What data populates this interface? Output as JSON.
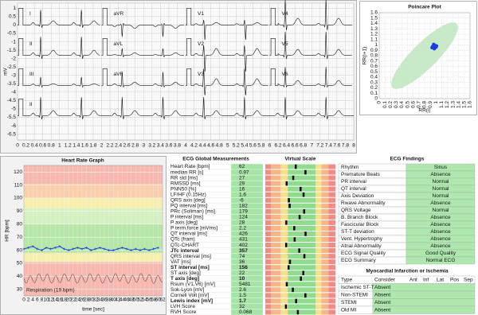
{
  "chart_data": [
    {
      "type": "line",
      "ylabel": "mV",
      "leads": [
        "I",
        "aVR",
        "V1",
        "V4",
        "II",
        "aVL",
        "V2",
        "V5",
        "III",
        "aVF",
        "V3",
        "V6",
        "II"
      ],
      "color": "#111111",
      "grid": true,
      "xlim": [
        0,
        8
      ],
      "ylim": [
        -6.85,
        1.3
      ],
      "xticks": [
        0,
        0.2,
        0.4,
        0.6,
        0.8,
        1,
        1.2,
        1.4,
        1.6,
        1.8,
        2,
        2.2,
        2.4,
        2.6,
        2.8,
        3,
        3.2,
        3.4,
        3.6,
        3.8,
        4,
        4.2,
        4.4,
        4.6,
        4.8,
        5,
        5.2,
        5.4,
        5.6,
        5.8,
        6,
        6.2,
        6.4,
        6.6,
        6.8,
        7,
        7.2,
        7.4,
        7.6,
        7.8,
        8
      ],
      "yticks": [
        1,
        0.5,
        0,
        -0.5,
        -1,
        -1.5,
        -2,
        -2.5,
        -3,
        -3.5,
        -4,
        -4.5,
        -5,
        -5.5,
        -6,
        -6.5
      ]
    },
    {
      "type": "scatter",
      "title": "Poincare Plot",
      "xlabel": "RR(i)",
      "ylabel": "RR(i+1)",
      "color": "#1a3fe0",
      "x": [
        0.93,
        0.95,
        0.97,
        0.99,
        0.96,
        1.0,
        0.94,
        0.98,
        0.97,
        0.95,
        1.01,
        0.96
      ],
      "y": [
        0.95,
        0.97,
        0.94,
        0.98,
        1.0,
        0.96,
        0.97,
        0.99,
        0.93,
        0.96,
        0.98,
        1.01
      ],
      "xlim": [
        0,
        1.6
      ],
      "ylim": [
        0,
        1.6
      ],
      "xticks": [
        0,
        0.1,
        0.2,
        0.3,
        0.4,
        0.5,
        0.6,
        0.7,
        0.8,
        0.9,
        1,
        1.1,
        1.2,
        1.3,
        1.4,
        1.5,
        1.6
      ],
      "yticks": [
        0,
        0.1,
        0.2,
        0.3,
        0.4,
        0.5,
        0.6,
        0.7,
        0.8,
        0.9,
        1,
        1.1,
        1.2,
        1.3,
        1.4,
        1.5,
        1.6
      ]
    },
    {
      "type": "line",
      "title": "Heart Rate Graph",
      "xlabel": "time [sec]",
      "ylabel": "HR [bpm]",
      "annotation": "Respiration (19 bpm)",
      "color": "#1f3fd6",
      "x": [
        0,
        2,
        4,
        6,
        8,
        10,
        12,
        14,
        16,
        18,
        20,
        22,
        24,
        26,
        28,
        30,
        32,
        34,
        36,
        38,
        40,
        42,
        44,
        46,
        48,
        50,
        52,
        54,
        56,
        58,
        60
      ],
      "values": [
        61,
        62,
        63,
        61,
        60,
        62,
        61,
        62,
        63,
        61,
        60,
        61,
        62,
        61,
        62,
        60,
        61,
        62,
        61,
        60,
        60,
        61,
        62,
        61,
        60,
        61,
        60,
        61,
        60,
        61,
        62
      ],
      "xlim": [
        0,
        62
      ],
      "ylim": [
        25,
        125
      ],
      "xticks": [
        0,
        2,
        4,
        6,
        8,
        10,
        12,
        14,
        16,
        18,
        20,
        22,
        24,
        26,
        28,
        30,
        32,
        34,
        36,
        38,
        40,
        42,
        44,
        46,
        48,
        50,
        52,
        54,
        56,
        58,
        60,
        62
      ],
      "yticks": [
        30,
        40,
        50,
        60,
        70,
        80,
        90,
        100,
        110,
        120
      ]
    }
  ],
  "measurements": {
    "title": "ECG Global Measurements",
    "rows": [
      [
        "Heart Rate [bpm]",
        62
      ],
      [
        "median RR [s]",
        0.97
      ],
      [
        "RR std [ms]",
        27
      ],
      [
        "RMSSD [ms]",
        29
      ],
      [
        "PNN50 [%]",
        16
      ],
      [
        "LF/HF (0.15Hz)",
        1.6
      ],
      [
        "QRS axis [deg]",
        -6
      ],
      [
        "PQ interval [ms]",
        182
      ],
      [
        "PRc (Soliman) [ms]",
        179
      ],
      [
        "P interval [ms]",
        124
      ],
      [
        "P axis [deg]",
        28
      ],
      [
        "P term.force [mVms]",
        2.2
      ],
      [
        "QT interval [ms]",
        426
      ],
      [
        "QTc (fram)",
        431
      ],
      [
        "QTc-CHART",
        402
      ],
      [
        "JTc interval",
        357
      ],
      [
        "QRS interval [ms]",
        74
      ],
      [
        "VAT [ms]",
        36
      ],
      [
        "ST interval [ms]",
        156
      ],
      [
        "ST axis [deg]",
        22
      ],
      [
        "T axis [deg]",
        10
      ],
      [
        "Rsum (V1,V6) [mV]",
        5481
      ],
      [
        "Sok-Lyon [mV]",
        2.6
      ],
      [
        "Cornell Volt [mV]",
        1.5
      ],
      [
        "Lewis index [mV]",
        1.7
      ],
      [
        "LVH Score",
        32
      ],
      [
        "RVH Score",
        0.068
      ]
    ]
  },
  "virtual_scale": {
    "title": "Virtual Scale"
  },
  "findings": {
    "title": "ECG Findings",
    "rows": [
      [
        "Rhythm",
        "Sinus"
      ],
      [
        "Premature Beats",
        "Absence"
      ],
      [
        "PR interval",
        "Normal"
      ],
      [
        "QT interval",
        "Normal"
      ],
      [
        "Axis Deviation",
        "Normal"
      ],
      [
        "Rwave Abnormality",
        "Absence"
      ],
      [
        "QRS Voltage",
        "Normal"
      ],
      [
        "B. Branch Block",
        "Absence"
      ],
      [
        "Fascicular Block",
        "Absence"
      ],
      [
        "ST-T deviation",
        "Absence"
      ],
      [
        "Vent. Hypertrophy",
        "Absence"
      ],
      [
        "Atrial Abnormality",
        "Absence"
      ],
      [
        "ECG Signal Quality",
        "Good Quality"
      ],
      [
        "ECG Summary",
        "Normal ECG"
      ]
    ]
  },
  "infarction": {
    "title": "Myocardial Infarction or Ischemia",
    "columns": [
      "Type",
      "Consider",
      "Ant",
      "Inf",
      "Lat",
      "Pos",
      "Sep"
    ],
    "rows": [
      [
        "Ischemic ST-T",
        "Absent"
      ],
      [
        "Non-STEMI",
        "Absent"
      ],
      [
        "STEMI",
        "Absent"
      ],
      [
        "Old MI",
        "Absent"
      ]
    ]
  }
}
